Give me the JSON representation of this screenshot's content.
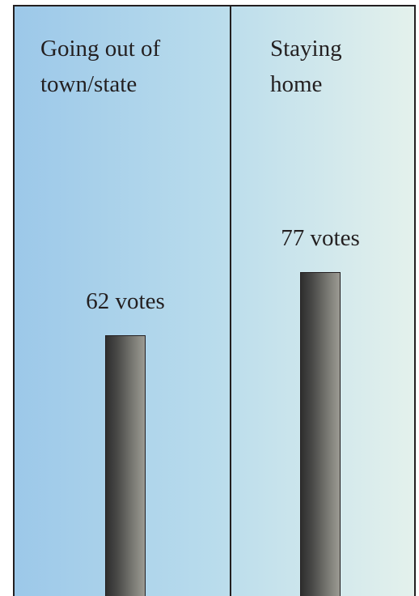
{
  "chart_data": {
    "type": "bar",
    "categories": [
      "Going out of\ntown/state",
      "Staying\nhome"
    ],
    "values": [
      62,
      77
    ],
    "value_labels": [
      "62 votes",
      "77 votes"
    ],
    "title": "",
    "xlabel": "",
    "ylabel": "",
    "legend": "none",
    "grid": false,
    "colors": {
      "background_left": "#9cc8e9",
      "background_right": "#e4f1ec",
      "bar_dark": "#2e2e2e",
      "bar_light": "#9c9b93",
      "line": "#231f20"
    }
  }
}
